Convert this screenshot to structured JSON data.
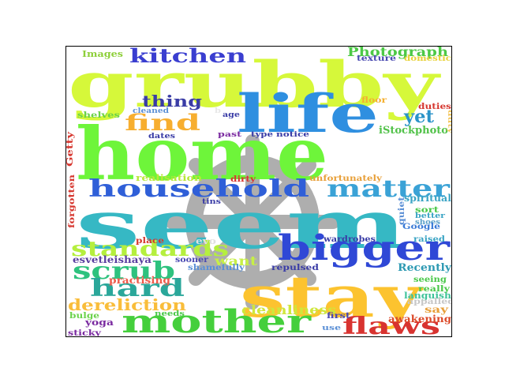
{
  "watermark": {
    "icon": "ship-wheel-icon",
    "color": "#a6a6a6"
  },
  "words": [
    {
      "text": "home",
      "color": "#6ef53a"
    },
    {
      "text": "grubby",
      "color": "#d6f83a"
    },
    {
      "text": "seem",
      "color": "#36b8c4"
    },
    {
      "text": "stay",
      "color": "#fcc32f"
    },
    {
      "text": "life",
      "color": "#2f8fe0"
    },
    {
      "text": "mother",
      "color": "#45cf3c"
    },
    {
      "text": "household",
      "color": "#2f5fd8"
    },
    {
      "text": "bigger",
      "color": "#2f48d6"
    },
    {
      "text": "matter",
      "color": "#3aa2d6"
    },
    {
      "text": "kitchen",
      "color": "#3a3ed0"
    },
    {
      "text": "standards",
      "color": "#b5ef3e"
    },
    {
      "text": "scrub",
      "color": "#2ec27e"
    },
    {
      "text": "hard",
      "color": "#2aa79a"
    },
    {
      "text": "find",
      "color": "#f7ae2f"
    },
    {
      "text": "flaws",
      "color": "#d83330"
    },
    {
      "text": "dereliction",
      "color": "#f9bd3a"
    },
    {
      "text": "Photograph",
      "color": "#4dc946"
    },
    {
      "text": "thing",
      "color": "#3a3ca6"
    },
    {
      "text": "yet",
      "color": "#2a93c8"
    },
    {
      "text": "want",
      "color": "#c7ef46"
    },
    {
      "text": "cleanliness",
      "color": "#cfe73c"
    },
    {
      "text": "Recently",
      "color": "#2e9ab3"
    },
    {
      "text": "iStockphoto",
      "color": "#52c24a"
    },
    {
      "text": "awakening",
      "color": "#dc4a2a"
    },
    {
      "text": "esvetleishaya",
      "color": "#5a3fa0"
    },
    {
      "text": "practising",
      "color": "#ef5a4a"
    },
    {
      "text": "spiritual",
      "color": "#3aa4c4"
    },
    {
      "text": "languish",
      "color": "#3fc39a"
    },
    {
      "text": "Images",
      "color": "#8ecf3a"
    },
    {
      "text": "texture",
      "color": "#4a4ab2"
    },
    {
      "text": "domestic",
      "color": "#e8d23a"
    },
    {
      "text": "floor",
      "color": "#f4b030"
    },
    {
      "text": "duties",
      "color": "#d6372f"
    },
    {
      "text": "shelves",
      "color": "#6bd24a"
    },
    {
      "text": "cleaned",
      "color": "#5c90d6"
    },
    {
      "text": "age",
      "color": "#3a3ca6"
    },
    {
      "text": "dates",
      "color": "#3a3ca6"
    },
    {
      "text": "past",
      "color": "#7a2aa0"
    },
    {
      "text": "type",
      "color": "#3a3ca6"
    },
    {
      "text": "notice",
      "color": "#3a3ca6"
    },
    {
      "text": "Getty",
      "color": "#d6372f"
    },
    {
      "text": "forgotten",
      "color": "#d6372f"
    },
    {
      "text": "realisation",
      "color": "#b9e83a"
    },
    {
      "text": "dirty",
      "color": "#d6372f"
    },
    {
      "text": "unfortunately",
      "color": "#e8a03a"
    },
    {
      "text": "tins",
      "color": "#3a3ca6"
    },
    {
      "text": "sort",
      "color": "#4ac84a"
    },
    {
      "text": "better",
      "color": "#3aa4c4"
    },
    {
      "text": "shoes",
      "color": "#5aa0c8"
    },
    {
      "text": "Google",
      "color": "#3a7ad6"
    },
    {
      "text": "quiet",
      "color": "#5c90d6"
    },
    {
      "text": "place",
      "color": "#d6372f"
    },
    {
      "text": "wardrobes",
      "color": "#3a3ca6"
    },
    {
      "text": "raised",
      "color": "#3aa4c4"
    },
    {
      "text": "sooner",
      "color": "#4a4ab2"
    },
    {
      "text": "shamefully",
      "color": "#5c90d6"
    },
    {
      "text": "repulsed",
      "color": "#3a3ca6"
    },
    {
      "text": "seeing",
      "color": "#4ac84a"
    },
    {
      "text": "really",
      "color": "#4ac84a"
    },
    {
      "text": "appalled",
      "color": "#c8c8c8"
    },
    {
      "text": "say",
      "color": "#e8a03a"
    },
    {
      "text": "bulge",
      "color": "#6bd24a"
    },
    {
      "text": "yoga",
      "color": "#7a2aa0"
    },
    {
      "text": "needs",
      "color": "#4ac84a"
    },
    {
      "text": "first",
      "color": "#4a4ab2"
    },
    {
      "text": "use",
      "color": "#5c90d6"
    },
    {
      "text": "sticky",
      "color": "#7a2aa0"
    },
    {
      "text": "duty",
      "color": "#f4c860"
    },
    {
      "text": "evo",
      "color": "#e0e0e0"
    },
    {
      "text": "b",
      "color": "#e8e8e8"
    }
  ]
}
